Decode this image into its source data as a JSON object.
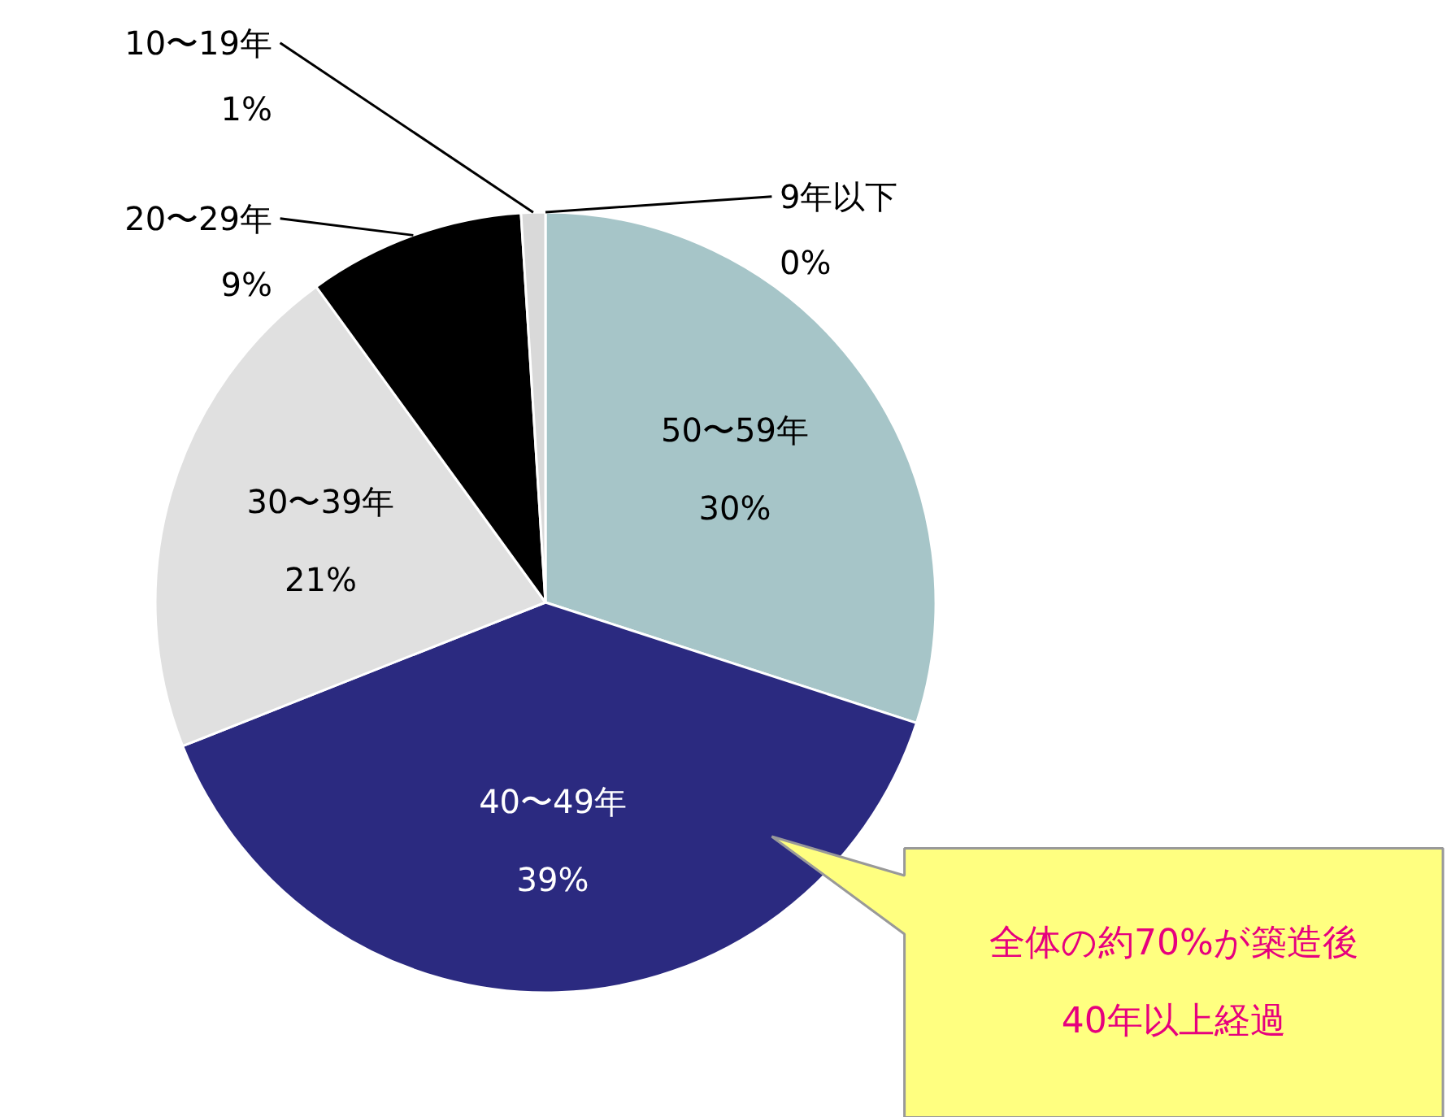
{
  "chart_data": {
    "type": "pie",
    "categories": [
      "9年以下",
      "50〜59年",
      "40〜49年",
      "30〜39年",
      "20〜29年",
      "10〜19年"
    ],
    "values": [
      0,
      30,
      39,
      21,
      9,
      1
    ],
    "value_labels": [
      "0%",
      "30%",
      "39%",
      "21%",
      "9%",
      "1%"
    ],
    "colors": [
      "#2b2a7e",
      "#a6c5c8",
      "#2b2a80",
      "#e0e0e0",
      "#000000",
      "#d9d9d9"
    ],
    "annotations": [
      "全体の約70%が築造後\n40年以上経過"
    ]
  }
}
